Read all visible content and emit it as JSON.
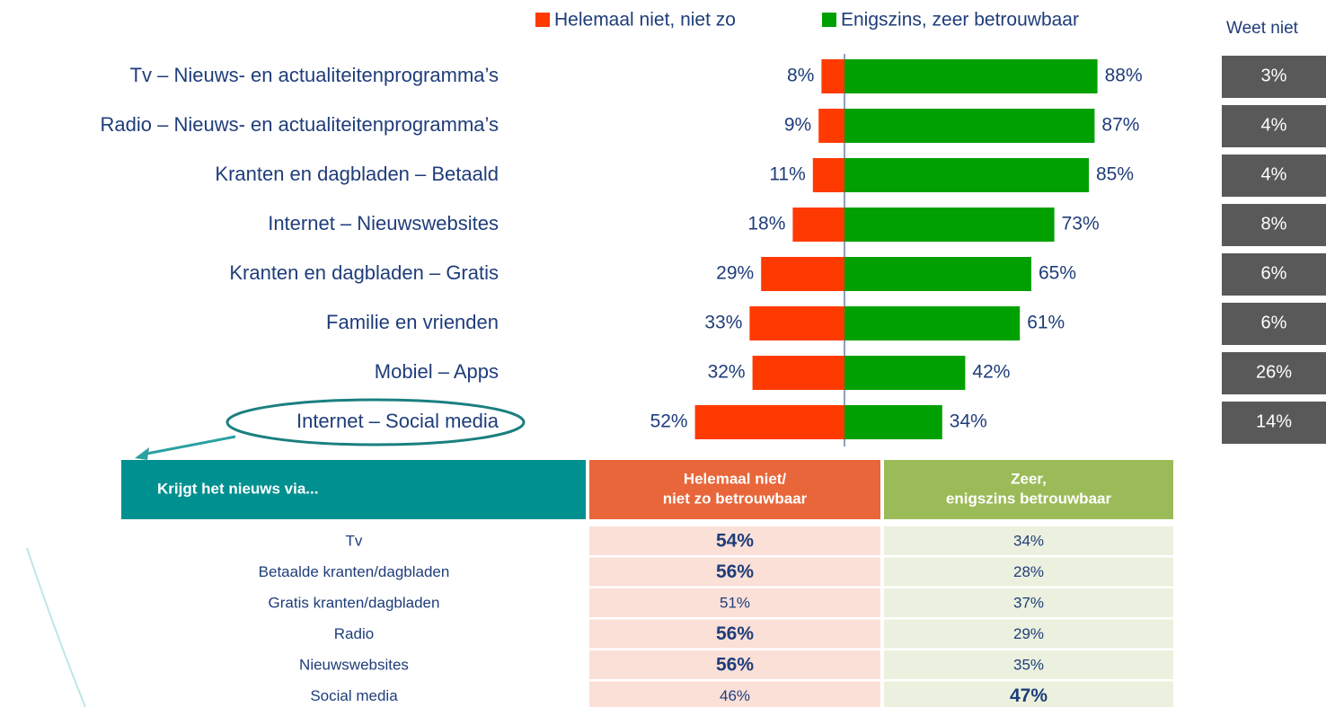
{
  "chart_data": {
    "type": "bar",
    "categories": [
      "Tv – Nieuws- en actualiteitenprogramma’s",
      "Radio – Nieuws- en actualiteitenprogramma’s",
      "Kranten en dagbladen – Betaald",
      "Internet – Nieuwswebsites",
      "Kranten en dagbladen – Gratis",
      "Familie en vrienden",
      "Mobiel –  Apps",
      "Internet – Social media"
    ],
    "series": [
      {
        "name": "Helemaal niet, niet zo",
        "color": "#ff3a00",
        "direction": "left",
        "values": [
          8,
          9,
          11,
          18,
          29,
          33,
          32,
          52
        ],
        "value_labels": [
          "8%",
          "9%",
          "11%",
          "18%",
          "29%",
          "33%",
          "32%",
          "52%"
        ]
      },
      {
        "name": "Enigszins, zeer betrouwbaar",
        "color": "#00a000",
        "direction": "right",
        "values": [
          88,
          87,
          85,
          73,
          65,
          61,
          42,
          34
        ],
        "value_labels": [
          "88%",
          "87%",
          "85%",
          "73%",
          "65%",
          "61%",
          "42%",
          "34%"
        ]
      }
    ],
    "dont_know": {
      "title": "Weet niet",
      "color": "#595959",
      "values": [
        3,
        4,
        4,
        8,
        6,
        6,
        26,
        14
      ],
      "value_labels": [
        "3%",
        "4%",
        "4%",
        "8%",
        "6%",
        "6%",
        "26%",
        "14%"
      ]
    }
  },
  "table": {
    "header": [
      [
        "Krijgt het nieuws via..."
      ],
      [
        "Helemaal niet/",
        "niet zo betrouwbaar"
      ],
      [
        "Zeer,",
        "enigszins betrouwbaar"
      ]
    ],
    "rows": [
      [
        "Tv",
        "54%",
        "34%"
      ],
      [
        "Betaalde kranten/dagbladen",
        "56%",
        "28%"
      ],
      [
        "Gratis kranten/dagbladen",
        "51%",
        "37%"
      ],
      [
        "Radio",
        "56%",
        "29%"
      ],
      [
        "Nieuwswebsites",
        "56%",
        "35%"
      ],
      [
        "Social media",
        "46%",
        "47%"
      ]
    ],
    "bold": [
      [
        false,
        true,
        false
      ],
      [
        false,
        true,
        false
      ],
      [
        false,
        false,
        false
      ],
      [
        false,
        true,
        false
      ],
      [
        false,
        true,
        false
      ],
      [
        false,
        false,
        true
      ]
    ]
  }
}
